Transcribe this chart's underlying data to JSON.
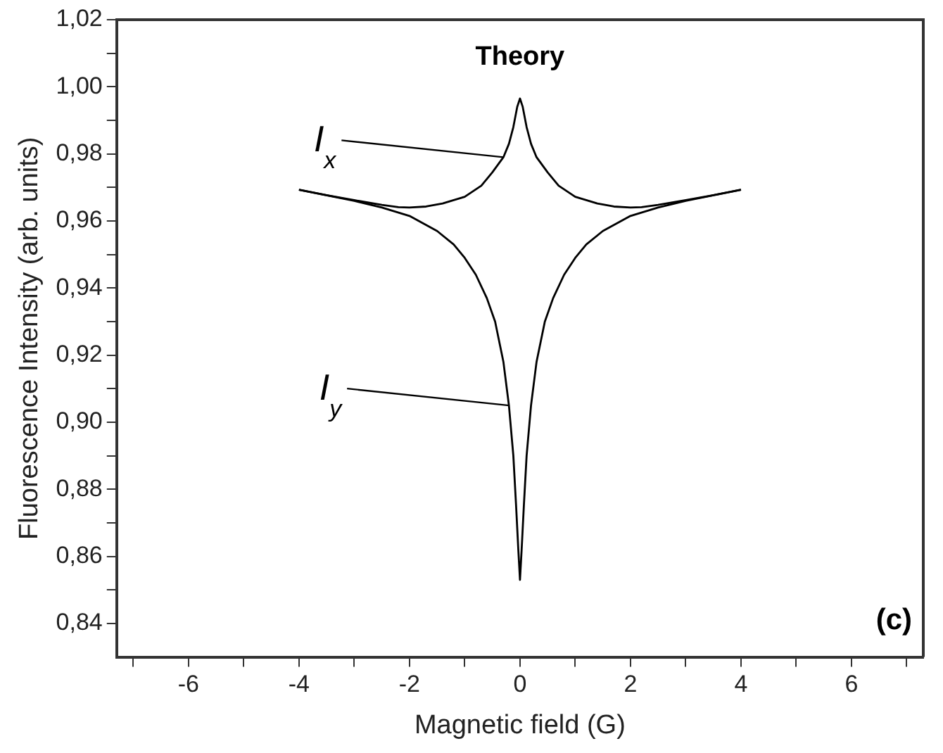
{
  "chart_data": {
    "type": "line",
    "title": "Theory",
    "xlabel": "Magnetic field (G)",
    "ylabel": "Fluorescence Intensity (arb. units)",
    "xlim": [
      -7.3,
      7.3
    ],
    "ylim": [
      0.83,
      1.02
    ],
    "xticks": [
      {
        "value": -7,
        "label": null
      },
      -6,
      {
        "value": -5,
        "label": null
      },
      -4,
      {
        "value": -3,
        "label": null
      },
      -2,
      {
        "value": -1,
        "label": null
      },
      0,
      {
        "value": 1,
        "label": null
      },
      2,
      {
        "value": 3,
        "label": null
      },
      4,
      {
        "value": 5,
        "label": null
      },
      6,
      {
        "value": 7,
        "label": null
      }
    ],
    "yticks": [
      {
        "value": 0.84,
        "label": "0,84"
      },
      {
        "value": 0.85,
        "label": null
      },
      {
        "value": 0.86,
        "label": "0,86"
      },
      {
        "value": 0.87,
        "label": null
      },
      {
        "value": 0.88,
        "label": "0,88"
      },
      {
        "value": 0.89,
        "label": null
      },
      {
        "value": 0.9,
        "label": "0,90"
      },
      {
        "value": 0.91,
        "label": null
      },
      {
        "value": 0.92,
        "label": "0,92"
      },
      {
        "value": 0.93,
        "label": null
      },
      {
        "value": 0.94,
        "label": "0,94"
      },
      {
        "value": 0.95,
        "label": null
      },
      {
        "value": 0.96,
        "label": "0,96"
      },
      {
        "value": 0.97,
        "label": null
      },
      {
        "value": 0.98,
        "label": "0,98"
      },
      {
        "value": 0.99,
        "label": null
      },
      {
        "value": 1.0,
        "label": "1,00"
      },
      {
        "value": 1.01,
        "label": null
      },
      {
        "value": 1.02,
        "label": "1,02"
      }
    ],
    "grid": false,
    "legend": false,
    "marker": "none",
    "line_style": "solid",
    "series": [
      {
        "color": "#000000",
        "x": [
          -4,
          -3.5,
          -3,
          -2.5,
          -2.2,
          -2,
          -1.7,
          -1.4,
          -1,
          -0.7,
          -0.5,
          -0.3,
          -0.2,
          -0.12,
          -0.05,
          0,
          0.05,
          0.12,
          0.2,
          0.3,
          0.5,
          0.7,
          1,
          1.4,
          1.7,
          2,
          2.2,
          2.5,
          3,
          3.5,
          4
        ],
        "values": [
          0.9693,
          0.9677,
          0.9662,
          0.9648,
          0.9641,
          0.964,
          0.9643,
          0.9652,
          0.9672,
          0.9705,
          0.9745,
          0.979,
          0.983,
          0.988,
          0.994,
          0.9965,
          0.994,
          0.988,
          0.983,
          0.979,
          0.9745,
          0.9705,
          0.9672,
          0.9652,
          0.9643,
          0.964,
          0.9641,
          0.9648,
          0.9662,
          0.9677,
          0.9693
        ]
      },
      {
        "color": "#000000",
        "x": [
          -4,
          -3,
          -2.5,
          -2,
          -1.5,
          -1.2,
          -1,
          -0.8,
          -0.6,
          -0.45,
          -0.3,
          -0.2,
          -0.12,
          -0.07,
          -0.03,
          0,
          0.03,
          0.07,
          0.12,
          0.2,
          0.3,
          0.45,
          0.6,
          0.8,
          1,
          1.2,
          1.5,
          2,
          2.5,
          3,
          4
        ],
        "values": [
          0.9693,
          0.966,
          0.964,
          0.9615,
          0.957,
          0.953,
          0.949,
          0.944,
          0.937,
          0.93,
          0.918,
          0.905,
          0.89,
          0.875,
          0.862,
          0.853,
          0.862,
          0.875,
          0.89,
          0.905,
          0.918,
          0.93,
          0.937,
          0.944,
          0.949,
          0.953,
          0.957,
          0.9615,
          0.964,
          0.966,
          0.9693
        ]
      }
    ],
    "annotations": [
      {
        "text": "I$_{x}$",
        "x": -0.3,
        "y": 0.979
      },
      {
        "text": "I$_{y}$",
        "x": -0.2,
        "y": 0.905
      },
      "(c)"
    ]
  }
}
